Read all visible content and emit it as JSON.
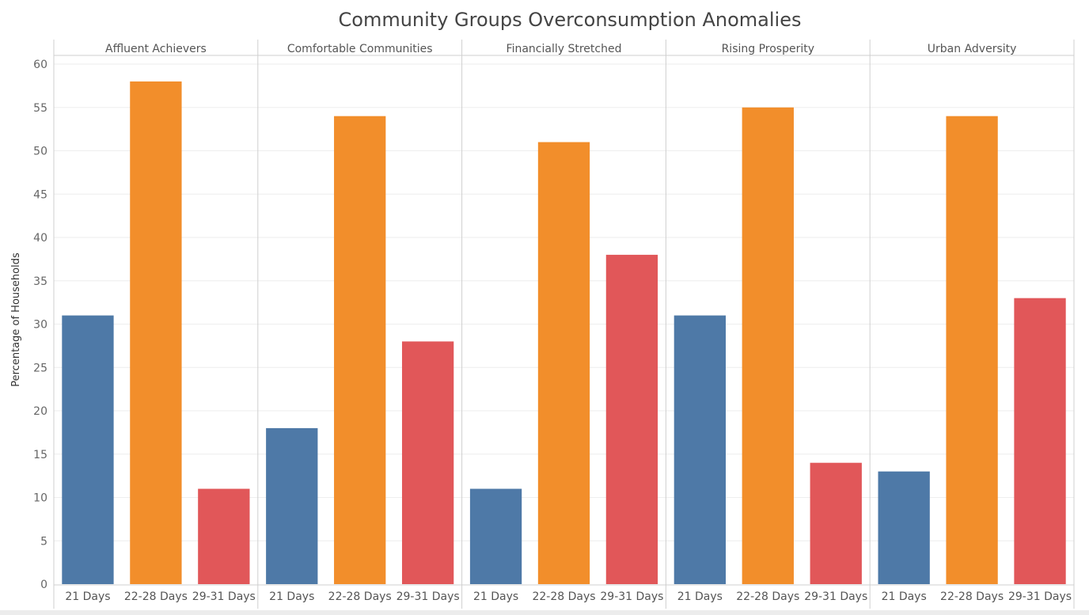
{
  "chart_data": {
    "type": "bar",
    "title": "Community Groups Overconsumption Anomalies",
    "ylabel": "Percentage of Households",
    "xlabel": "",
    "ylim": [
      0,
      60
    ],
    "yticks": [
      0,
      5,
      10,
      15,
      20,
      25,
      30,
      35,
      40,
      45,
      50,
      55,
      60
    ],
    "grid": true,
    "panels": [
      {
        "name": "Affluent Achievers",
        "categories": [
          "21 Days",
          "22-28 Days",
          "29-31 Days"
        ],
        "values": [
          31,
          58,
          11
        ]
      },
      {
        "name": "Comfortable Communities",
        "categories": [
          "21 Days",
          "22-28 Days",
          "29-31 Days"
        ],
        "values": [
          18,
          54,
          28
        ]
      },
      {
        "name": "Financially Stretched",
        "categories": [
          "21 Days",
          "22-28 Days",
          "29-31 Days"
        ],
        "values": [
          11,
          51,
          38
        ]
      },
      {
        "name": "Rising Prosperity",
        "categories": [
          "21 Days",
          "22-28 Days",
          "29-31 Days"
        ],
        "values": [
          31,
          55,
          14
        ]
      },
      {
        "name": "Urban Adversity",
        "categories": [
          "21 Days",
          "22-28 Days",
          "29-31 Days"
        ],
        "values": [
          13,
          54,
          33
        ]
      }
    ],
    "category_colors": [
      "#4e79a7",
      "#f28e2b",
      "#e15759"
    ]
  }
}
